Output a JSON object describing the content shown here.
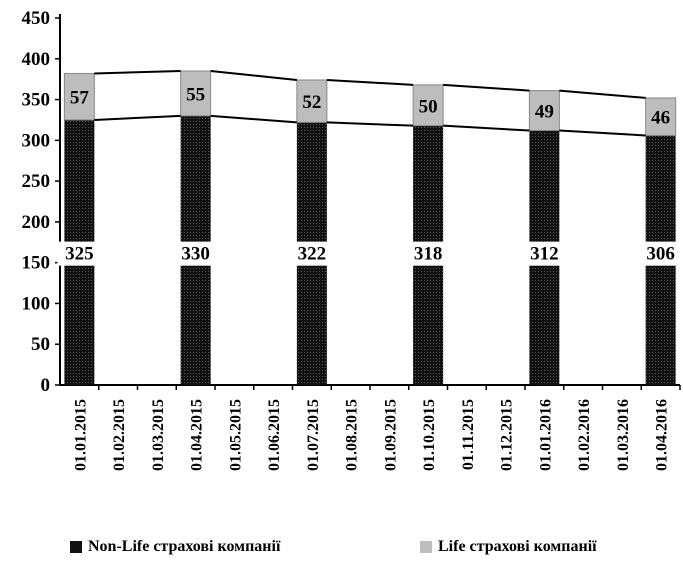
{
  "chart_data": {
    "type": "bar",
    "stacked": true,
    "categories": [
      "01.01.2015",
      "01.02.2015",
      "01.03.2015",
      "01.04.2015",
      "01.05.2015",
      "01.06.2015",
      "01.07.2015",
      "01.08.2015",
      "01.09.2015",
      "01.10.2015",
      "01.11.2015",
      "01.12.2015",
      "01.01.2016",
      "01.02.2016",
      "01.03.2016",
      "01.04.2016"
    ],
    "series": [
      {
        "name": "Non-Life страхові компанії",
        "color": "#111111",
        "values": [
          325,
          null,
          null,
          330,
          null,
          null,
          322,
          null,
          null,
          318,
          null,
          null,
          312,
          null,
          null,
          306
        ]
      },
      {
        "name": "Life страхові компанії",
        "color": "#bdbdbd",
        "values": [
          57,
          null,
          null,
          55,
          null,
          null,
          52,
          null,
          null,
          50,
          null,
          null,
          49,
          null,
          null,
          46
        ]
      }
    ],
    "yticks": [
      "0",
      "50",
      "100",
      "150",
      "200",
      "250",
      "300",
      "350",
      "400",
      "450"
    ],
    "ylim": [
      0,
      450
    ],
    "title": "",
    "xlabel": "",
    "ylabel": "",
    "grid": false,
    "legend_position": "bottom",
    "series_lines": true
  }
}
